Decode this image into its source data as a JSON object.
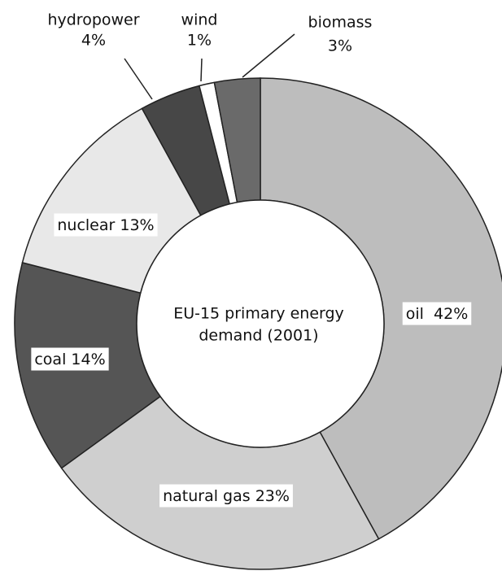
{
  "chart_data": {
    "type": "donut",
    "title": [
      "EU-15 primary energy",
      "demand (2001)"
    ],
    "categories": [
      "oil",
      "natural gas",
      "coal",
      "nuclear",
      "hydropower",
      "wind",
      "biomass"
    ],
    "values": [
      42,
      23,
      14,
      13,
      4,
      1,
      3
    ],
    "value_labels": [
      "42%",
      "23%",
      "14%",
      "13%",
      "4%",
      "1%",
      "3%"
    ],
    "colors": [
      "#bdbdbd",
      "#cfcfcf",
      "#555555",
      "#e8e8e8",
      "#474747",
      "#ffffff",
      "#6a6a6a"
    ]
  }
}
